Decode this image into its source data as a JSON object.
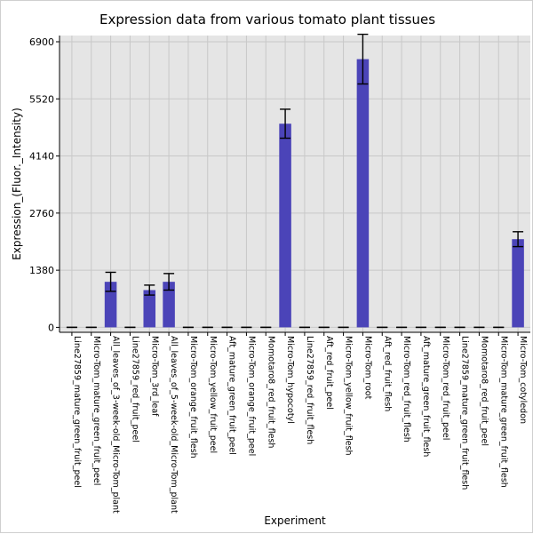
{
  "chart_data": {
    "type": "bar",
    "title": "Expression data from various tomato plant tissues",
    "xlabel": "Experiment",
    "ylabel": "Expression_(Fluor._Intensity)",
    "ylim": [
      -120,
      7050
    ],
    "yticks": [
      0,
      1380,
      2760,
      4140,
      5520,
      6900
    ],
    "ytick_labels": [
      "0",
      "1380",
      "2760",
      "4140",
      "5520",
      "6900"
    ],
    "grid": true,
    "bar_color": "#4b44b8",
    "plot_background": "#e5e5e5",
    "categories": [
      "Line27859_mature_green_fruit_peel",
      "Micro-Tom_mature_green_fruit_peel",
      "All_leaves_of_3-week-old_Micro-Tom_plant",
      "Line27859_red_fruit_peel",
      "Micro-Tom_3rd_leaf",
      "All_leaves_of_5-week-old_Micro-Tom_plant",
      "Micro-Tom_orange_fruit_flesh",
      "Micro-Tom_yellow_fruit_peel",
      "Aft_mature_green_fruit_peel",
      "Micro-Tom_orange_fruit_peel",
      "Momotaro8_red_fruit_flesh",
      "Micro-Tom_hypocotyl",
      "Line27859_red_fruit_flesh",
      "Aft_red_fruit_peel",
      "Micro-Tom_yellow_fruit_flesh",
      "Micro-Tom_root",
      "Aft_red_fruit_flesh",
      "Micro-Tom_red_fruit_flesh",
      "Aft_mature_green_fruit_flesh",
      "Micro-Tom_red_fruit_peel",
      "Line27859_mature_green_fruit_flesh",
      "Momotaro8_red_fruit_peel",
      "Micro-Tom_mature_green_fruit_flesh",
      "Micro-Tom_cotyledon"
    ],
    "values": [
      0,
      0,
      1100,
      0,
      900,
      1100,
      0,
      0,
      0,
      0,
      0,
      4920,
      0,
      0,
      0,
      6480,
      0,
      0,
      0,
      0,
      0,
      0,
      0,
      2130
    ],
    "errors": [
      0,
      0,
      230,
      0,
      120,
      200,
      0,
      0,
      0,
      0,
      0,
      350,
      0,
      0,
      0,
      600,
      0,
      0,
      0,
      0,
      0,
      0,
      0,
      180
    ]
  }
}
